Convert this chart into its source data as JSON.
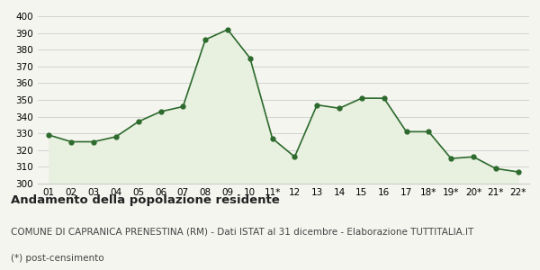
{
  "x_labels": [
    "01",
    "02",
    "03",
    "04",
    "05",
    "06",
    "07",
    "08",
    "09",
    "10",
    "11*",
    "12",
    "13",
    "14",
    "15",
    "16",
    "17",
    "18*",
    "19*",
    "20*",
    "21*",
    "22*"
  ],
  "y_values": [
    329,
    325,
    325,
    328,
    337,
    343,
    346,
    386,
    392,
    375,
    327,
    316,
    347,
    345,
    351,
    351,
    331,
    331,
    315,
    316,
    309,
    307
  ],
  "ylim": [
    300,
    400
  ],
  "yticks": [
    300,
    310,
    320,
    330,
    340,
    350,
    360,
    370,
    380,
    390,
    400
  ],
  "line_color": "#2d6a2d",
  "fill_color": "#e8f0e0",
  "marker_color": "#2d6a2d",
  "bg_color": "#f5f5f0",
  "grid_color": "#cccccc",
  "title_bold": "Andamento della popolazione residente",
  "subtitle": "COMUNE DI CAPRANICA PRENESTINA (RM) - Dati ISTAT al 31 dicembre - Elaborazione TUTTITALIA.IT",
  "footnote": "(*) post-censimento",
  "title_fontsize": 9.5,
  "subtitle_fontsize": 7.5,
  "footnote_fontsize": 7.5,
  "tick_fontsize": 7.5
}
